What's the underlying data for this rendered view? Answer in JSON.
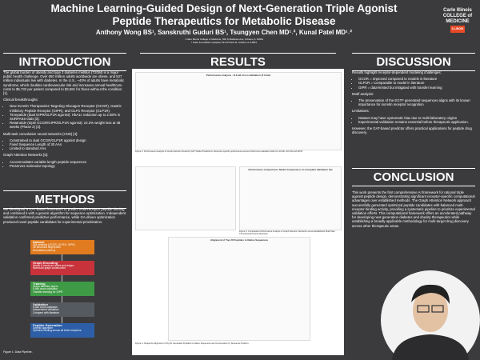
{
  "header": {
    "title": [
      "Machine Learning-Guided Design of Next-Generation Triple Agonist",
      "Peptide Therapeutics for Metabolic Disease"
    ],
    "authors": "Anthony Wong BS¹, Sanskruthi Guduri BS¹, Tsungyen Chen MD¹˒², Kunal Patel MD¹˒²",
    "affiliations": [
      "¹ Carle Illinois College of Medicine, 506 S Mathews Ave, Urbana, IL 61801",
      "² Carle Foundation Hospital, 611 W Park St, Urbana, IL 61801"
    ],
    "logo": [
      "Carle Illinois",
      "COLLEGE of",
      "MEDICINE"
    ],
    "badge": "ILLINOIS"
  },
  "introduction": {
    "heading": "INTRODUCTION",
    "paragraph": "The global burden of obesity and type 2 diabetes mellitus (T2DM) is a major public health challenge. Over 650 million adults worldwide are obese, and 537 million individuals live with diabetes. In the U.S., ~40% of adults have metabolic syndrome, which doubles cardiovascular risk and increases annual healthcare costs to $5,732 per patient compared to $3,581 for those without the condition [1].",
    "groups": [
      {
        "title": "Clinical breakthroughs:",
        "items": [
          "New Incretin Therapeutics Targeting Glucagon Receptor (GCGR), Gastric Inhibitory Peptide Receptor (GIPR), and GLP1 Receptor (GLP1R).",
          "Tirzepatide (dual GIPR/GLP1R agonist): HbA1c reduction up to 2.58% in SURPASS trials [2].",
          "Retatrutide (triple GCGR/GIPR/GLP1R agonist): 24.2% weight loss at 48 weeks (Phase 2) [3]."
        ]
      },
      {
        "title": "Multi-task convolution neural networks (CNN) [4]:",
        "items": [
          "Constrained to dual GCGR/GLP1R agonist design",
          "Fixed Sequence Length of 30 AAs",
          "Limited to standard AAs"
        ]
      },
      {
        "title": "Graph Attention Networks [5]:",
        "items": [
          "Accommodates variable length peptide sequences",
          "Preserves molecular topology"
        ]
      }
    ]
  },
  "methods": {
    "heading": "METHODS",
    "paragraph": "We developed a GAT-based framework to predict multi-receptor peptide binding and combined it with a genetic algorithm for sequence optimization. Independent validation confirmed predictive performance, while GA-driven optimization produced novel peptide candidates for experimental prioritization.",
    "steps": [
      {
        "title": "Dataset",
        "items": [
          "254 peptides (GCGR, GLP1R, GIPR)",
          "3D structural fingerprints",
          "Normalized potency"
        ]
      },
      {
        "title": "Graph Encoding",
        "items": [
          "Atoms & bonds as nodes and edges",
          "Molecular graph construction"
        ]
      },
      {
        "title": "Training",
        "items": [
          "Graph attention layers",
          "5-fold cross-validation",
          "Transfer learning for GIPR"
        ]
      },
      {
        "title": "Validation",
        "items": [
          "5-fold cross-validation",
          "Independent Validation",
          "Compare with literature"
        ]
      },
      {
        "title": "Peptide Generation",
        "items": [
          "Genetic algorithm",
          "Optimize binding across all three receptors"
        ]
      }
    ],
    "caption": "Figure 1: Data Pipeline."
  },
  "results": {
    "heading": "RESULTS",
    "figures": [
      {
        "title": "Performance Analysis - N-Fold Cross-Validation (5 folds)",
        "caption": "Figure 2: Performance Analysis of Graph Attention Network (GAT) Model Predictions. Receptor-specific performance across N-fold cross-validation folds for GCGR, GLP1R and GIPR."
      },
      {
        "title": "Performance Comparison: Model Comparison on Complete Validation Set",
        "caption": "Figure 3: Comparative Performance Analysis of Graph Attention Networks versus Established Multi-Task Convolutional Neural Networks."
      },
      {
        "title": "Alignment of Top 20 Peptides to Native Sequences",
        "caption": "Figure 4: Sequence Alignment of Top 20 Generated Peptides to Native Sequences and Conservation by Sequence Position."
      }
    ]
  },
  "discussion": {
    "heading": "DISCUSSION",
    "groups": [
      {
        "title": "Results highlight receptor-dependent modeling challenges:",
        "items": [
          "GCGR = Improved compared to models in literature",
          "GLP1R = Comparable to model in literature",
          "GIPR = data-limited but mitigated with transfer learning"
        ]
      },
      {
        "title": "Motif analysis:",
        "items": [
          "The preservation of the EGTF generated sequences aligns with its known importance for incretin receptor recognition"
        ]
      },
      {
        "title": "Limitations:",
        "items": [
          "Dataset may have systematic bias due to multi-laboratory origins",
          "Experimental validation remains essential before therapeutic application."
        ]
      },
      {
        "title": "However, the GAT-based predictor offers practical applications for peptide drug discovery.",
        "items": []
      }
    ]
  },
  "conclusion": {
    "heading": "CONCLUSION",
    "paragraph": "This work presents the first comprehensive AI framework for rational triple agonist peptide design, demonstrating significant receptor-specific computational advantages over established methods. The Graph Attention Network approach successfully generated optimized peptide candidates with balanced multi-receptor binding activity, providing a systematic pipeline to prioritize experimental validation efforts. This computational framework offers an accelerated pathway for developing next-generation diabetes and obesity therapeutics while establishing a broadly applicable methodology for multi-target drug discovery across other therapeutic areas."
  }
}
